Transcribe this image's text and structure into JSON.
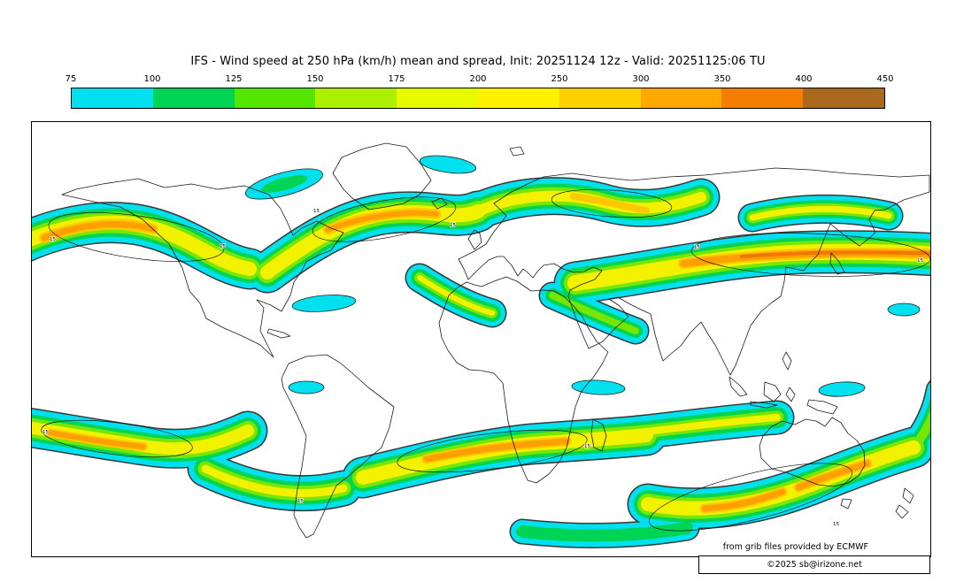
{
  "header": {
    "title": "IFS - Wind speed at 250 hPa (km/h) mean and spread, Init: 20251124 12z - Valid: 20251125:06 TU"
  },
  "colorbar": {
    "tick_labels": [
      "75",
      "100",
      "125",
      "150",
      "175",
      "200",
      "250",
      "300",
      "350",
      "400",
      "450"
    ],
    "segment_colors": [
      "#00e0ee",
      "#00d455",
      "#55e600",
      "#aaf000",
      "#e8fa00",
      "#fff000",
      "#ffd000",
      "#ffa800",
      "#f57d00",
      "#a96a1e"
    ],
    "unit": "km/h"
  },
  "map": {
    "spread_contour_label": "15",
    "background": "#ffffff",
    "coastline_color": "#1a1a1a"
  },
  "footer": {
    "attribution": "from grib files provided by ECMWF",
    "copyright": "©2025 sb@irizone.net"
  }
}
